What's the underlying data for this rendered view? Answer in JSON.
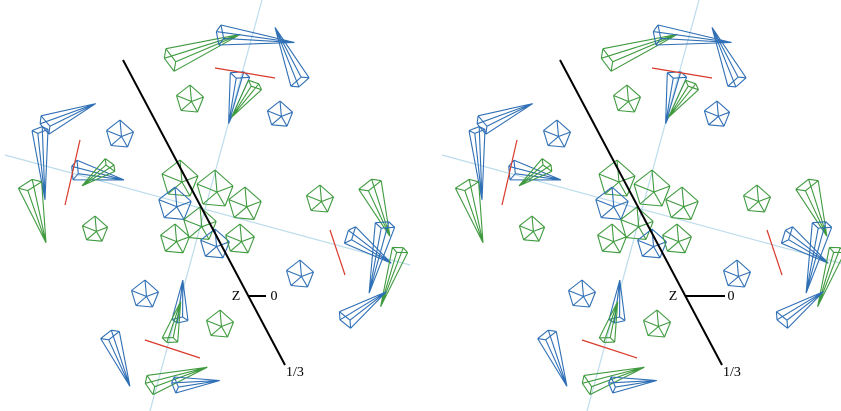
{
  "panels": [
    {
      "z_label": "Z",
      "origin_label": "0",
      "fraction_label": "1/3"
    },
    {
      "z_label": "Z",
      "origin_label": "0",
      "fraction_label": "1/3"
    }
  ]
}
